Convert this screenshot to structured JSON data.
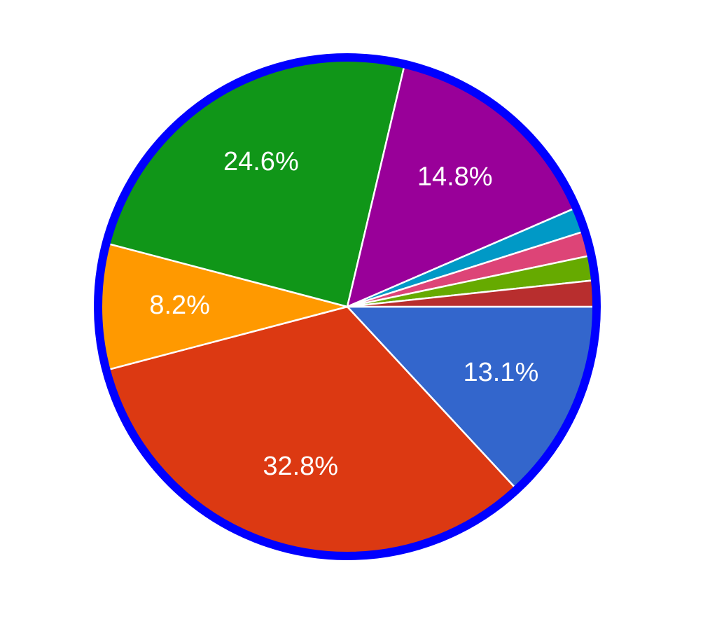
{
  "chart_data": {
    "type": "pie",
    "values": [
      13.1,
      32.8,
      8.2,
      24.6,
      14.8,
      1.6,
      1.6,
      1.6,
      1.7
    ],
    "value_labels": [
      "13.1%",
      "32.8%",
      "8.2%",
      "24.6%",
      "14.8%",
      null,
      null,
      null,
      null
    ],
    "colors": [
      "#3366cc",
      "#dc3912",
      "#ff9900",
      "#109618",
      "#990099",
      "#0099c6",
      "#dd4477",
      "#66aa00",
      "#b82e2e"
    ],
    "border_color": "#0000ff"
  }
}
